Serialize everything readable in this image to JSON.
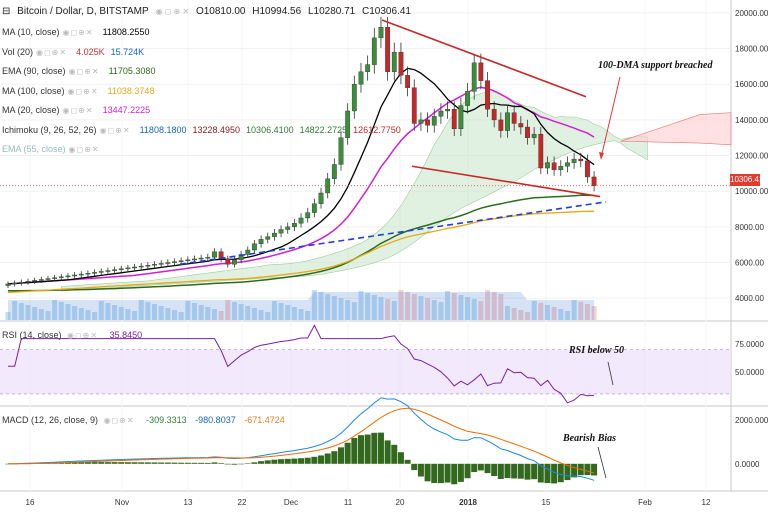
{
  "header": {
    "collapse_icon": "minus-box-icon",
    "symbol": "Bitcoin / Dollar, D, BITSTAMP",
    "ohlc": {
      "o": "O10810.00",
      "h": "H10994.56",
      "l": "L10280.71",
      "c": "C10306.41"
    }
  },
  "indicators": [
    {
      "label": "MA (10, close)",
      "values": [
        "11808.2550"
      ],
      "colors": [
        "#000000"
      ]
    },
    {
      "label": "Vol (20)",
      "values": [
        "4.025K",
        "15.724K"
      ],
      "colors": [
        "#d32f2f",
        "#1e63c8"
      ]
    },
    {
      "label": "EMA (90, close)",
      "values": [
        "11705.3080"
      ],
      "colors": [
        "#2e6b1a"
      ]
    },
    {
      "label": "MA (100, close)",
      "values": [
        "11038.3748"
      ],
      "colors": [
        "#e6a817"
      ]
    },
    {
      "label": "MA (20, close)",
      "values": [
        "13447.2225"
      ],
      "colors": [
        "#d21fd6"
      ]
    },
    {
      "label": "Ichimoku (9, 26, 52, 26)",
      "values": [
        "11808.1800",
        "13228.4950",
        "10306.4100",
        "14822.2725",
        "12612.7750"
      ],
      "colors": [
        "#1565c0",
        "#8b1a1a",
        "#2e7d32",
        "#2e7d32",
        "#c62828"
      ]
    },
    {
      "label": "EMA (55, close)",
      "values": [],
      "colors": []
    }
  ],
  "annotations": {
    "dma": "100-DMA support breached",
    "rsi": "RSI below 50",
    "macd": "Bearish Bias"
  },
  "rsi_legend": {
    "label": "RSI (14, close)",
    "value": "35.8450"
  },
  "macd_legend": {
    "label": "MACD (12, 26, close, 9)",
    "values": [
      "-309.3313",
      "-980.8037",
      "-671.4724"
    ],
    "colors": [
      "#2e7d32",
      "#1565c0",
      "#e67e22"
    ]
  },
  "last_price_label": "10306.41",
  "chart_data": {
    "type": "candlestick",
    "x_ticks": [
      "16",
      "Nov",
      "13",
      "22",
      "Dec",
      "11",
      "20",
      "2018",
      "15",
      "Feb",
      "12"
    ],
    "price_axis": {
      "ticks": [
        "20000.00",
        "18000.00",
        "16000.00",
        "14000.00",
        "12000.00",
        "10000.00",
        "8000.00",
        "6000.00",
        "4000.00"
      ],
      "range": [
        3000,
        20500
      ]
    },
    "rsi_axis": {
      "ticks": [
        "75.0000",
        "50.0000"
      ],
      "overbought": 70,
      "oversold": 30,
      "range": [
        20,
        95
      ]
    },
    "macd_axis": {
      "ticks": [
        "2000.0000",
        "0.0000"
      ],
      "range": [
        -1200,
        2600
      ]
    },
    "close": [
      4800,
      4850,
      4900,
      4950,
      5000,
      5050,
      5100,
      5150,
      5200,
      5250,
      5300,
      5350,
      5400,
      5450,
      5500,
      5550,
      5600,
      5650,
      5700,
      5750,
      5800,
      5850,
      5900,
      5950,
      6000,
      6050,
      6100,
      6150,
      6200,
      6250,
      6300,
      6600,
      6200,
      5900,
      6150,
      6450,
      6700,
      7050,
      7300,
      7450,
      7650,
      7850,
      8000,
      8200,
      8500,
      8800,
      9300,
      9900,
      10700,
      11500,
      13000,
      14500,
      16000,
      16700,
      17100,
      18600,
      19200,
      16700,
      17800,
      16500,
      15800,
      13800,
      14000,
      13700,
      14200,
      14500,
      14600,
      13500,
      14800,
      15600,
      17200,
      16200,
      14600,
      14000,
      13400,
      14400,
      13800,
      13600,
      13000,
      13200,
      11300,
      11600,
      11200,
      11400,
      11600,
      11800,
      11700,
      10800,
      10306
    ],
    "annotation_overlays": {
      "descending_upper_trendline": "red",
      "descending_lower_trendline": "red",
      "rising_support_trendline": "blue dashed"
    }
  }
}
